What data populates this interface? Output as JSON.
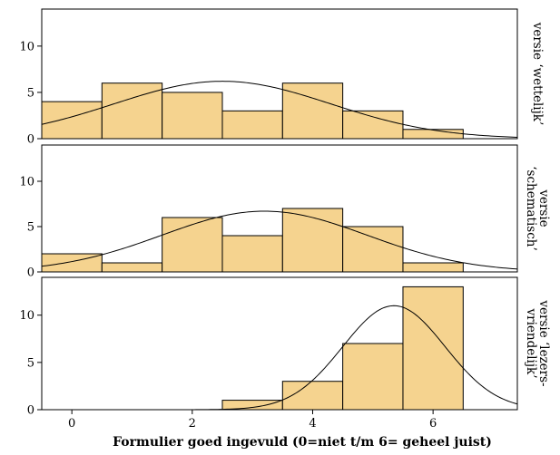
{
  "chart_data": {
    "type": "bar",
    "subtype": "faceted-histogram-with-normal-curve",
    "xlabel": "Formulier goed ingevuld (0=niet t/m 6= geheel juist)",
    "ylabel": "",
    "xlim": [
      -0.5,
      7.4
    ],
    "x_ticks": [
      "0",
      "2",
      "4",
      "6"
    ],
    "y_ticks": [
      "0",
      "5",
      "10"
    ],
    "ylim": [
      0,
      14
    ],
    "categories": [
      "0",
      "1",
      "2",
      "3",
      "4",
      "5",
      "6"
    ],
    "bar_color": "#f5d38f",
    "bar_edge_color": "#000000",
    "curve_color": "#000000",
    "grid": false,
    "legend": "none",
    "panels": [
      {
        "strip_lines": [
          "versie ‘wettelijk’"
        ],
        "values": [
          4,
          6,
          5,
          3,
          6,
          3,
          1
        ],
        "normal_curve": {
          "mean": 2.5,
          "sd": 1.8,
          "peak": 6.2
        }
      },
      {
        "strip_lines": [
          "versie",
          "‘schematisch’"
        ],
        "values": [
          2,
          1,
          6,
          4,
          7,
          5,
          1
        ],
        "normal_curve": {
          "mean": 3.2,
          "sd": 1.7,
          "peak": 6.7
        }
      },
      {
        "strip_lines": [
          "versie ‘lezers-",
          "vriendelijk’"
        ],
        "values": [
          0,
          0,
          0,
          1,
          3,
          7,
          13
        ],
        "normal_curve": {
          "mean": 5.35,
          "sd": 0.85,
          "peak": 11.0
        }
      }
    ]
  }
}
